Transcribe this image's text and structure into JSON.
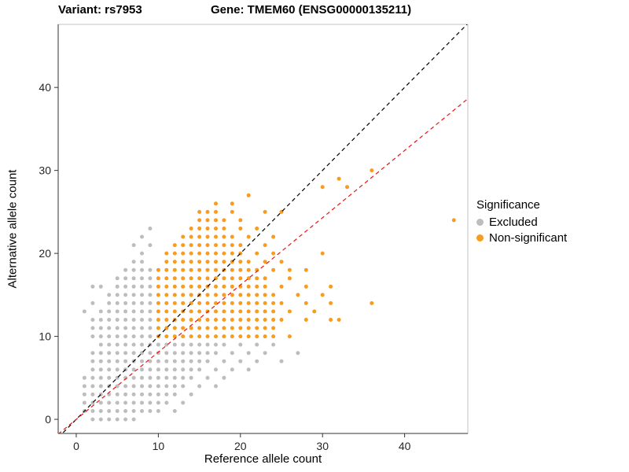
{
  "chart_data": {
    "type": "scatter",
    "title_left": "Variant: rs7953",
    "title_right": "Gene: TMEM60 (ENSG00000135211)",
    "xlabel": "Reference allele count",
    "ylabel": "Alternative allele count",
    "xlim": [
      -2.2,
      47.7
    ],
    "ylim": [
      -1.7,
      47.6
    ],
    "xticks": [
      0,
      10,
      20,
      30,
      40
    ],
    "yticks": [
      0,
      10,
      20,
      30,
      40
    ],
    "grid": false,
    "legend": {
      "title": "Significance",
      "position": "right",
      "entries": [
        {
          "label": "Excluded",
          "color": "#bdbdbd"
        },
        {
          "label": "Non-significant",
          "color": "#f79c1d"
        }
      ]
    },
    "lines": [
      {
        "name": "identity",
        "slope": 1.0,
        "intercept": 0,
        "color": "#000000",
        "dash": "5 4"
      },
      {
        "name": "expected-ratio",
        "slope": 0.81,
        "intercept": 0,
        "color": "#ee1111",
        "dash": "5 4"
      }
    ],
    "series": [
      {
        "name": "Excluded",
        "color": "#bdbdbd",
        "rows": {
          "0": [
            2,
            3,
            4,
            5,
            6,
            7
          ],
          "1": [
            1,
            2,
            3,
            4,
            5,
            6,
            7,
            8,
            9,
            10,
            12
          ],
          "2": [
            1,
            2,
            3,
            4,
            5,
            6,
            7,
            8,
            9,
            10,
            11,
            13
          ],
          "3": [
            1,
            2,
            3,
            4,
            5,
            6,
            7,
            8,
            9,
            10,
            11,
            12,
            14
          ],
          "4": [
            1,
            2,
            3,
            4,
            5,
            6,
            7,
            8,
            9,
            10,
            11,
            12,
            13,
            15,
            17
          ],
          "5": [
            1,
            2,
            3,
            4,
            5,
            6,
            7,
            8,
            9,
            10,
            11,
            12,
            13,
            14,
            16,
            18
          ],
          "6": [
            2,
            3,
            4,
            5,
            6,
            7,
            8,
            9,
            10,
            11,
            12,
            13,
            14,
            15,
            17,
            19,
            21
          ],
          "7": [
            2,
            3,
            4,
            5,
            6,
            7,
            8,
            9,
            10,
            11,
            12,
            13,
            14,
            15,
            16,
            18,
            20,
            22,
            25
          ],
          "8": [
            2,
            3,
            4,
            5,
            6,
            7,
            8,
            9,
            10,
            11,
            12,
            13,
            14,
            15,
            16,
            17,
            19,
            21,
            23,
            27
          ],
          "9": [
            3,
            4,
            5,
            6,
            7,
            8,
            9,
            10,
            11,
            12,
            13,
            14,
            15,
            16,
            17,
            18,
            20,
            22,
            24
          ],
          "10": [
            2,
            3,
            4,
            5,
            6,
            7,
            8,
            9
          ],
          "11": [
            2,
            3,
            4,
            5,
            6,
            7,
            8,
            9
          ],
          "12": [
            2,
            3,
            4,
            5,
            6,
            7,
            8,
            9
          ],
          "13": [
            1,
            3,
            4,
            5,
            6,
            7,
            8,
            9
          ],
          "14": [
            2,
            4,
            5,
            6,
            7,
            8,
            9
          ],
          "15": [
            4,
            5,
            6,
            7,
            8,
            9
          ],
          "16": [
            2,
            3,
            5,
            6,
            7,
            8,
            9
          ],
          "17": [
            5,
            6,
            7,
            8,
            9
          ],
          "18": [
            6,
            7,
            8,
            9
          ],
          "19": [
            7,
            8
          ],
          "20": [
            8
          ],
          "21": [
            7,
            9
          ],
          "22": [
            8
          ],
          "23": [
            9
          ]
        }
      },
      {
        "name": "Non-significant",
        "color": "#f79c1d",
        "rows": {
          "10": [
            10,
            11,
            12,
            13,
            14,
            15,
            16,
            17,
            18,
            19,
            20,
            21,
            22,
            23,
            24,
            26
          ],
          "11": [
            10,
            11,
            12,
            13,
            14,
            15,
            16,
            17,
            18,
            19,
            20,
            21,
            22,
            23,
            24
          ],
          "12": [
            10,
            11,
            12,
            13,
            14,
            15,
            16,
            17,
            18,
            19,
            20,
            21,
            22,
            23,
            24,
            25,
            28,
            31,
            32
          ],
          "13": [
            10,
            11,
            12,
            13,
            14,
            15,
            16,
            17,
            18,
            19,
            20,
            21,
            22,
            23,
            24,
            26,
            29
          ],
          "14": [
            10,
            11,
            12,
            13,
            14,
            15,
            16,
            17,
            18,
            19,
            20,
            21,
            22,
            23,
            24,
            25,
            28,
            31,
            36
          ],
          "15": [
            10,
            11,
            12,
            13,
            14,
            15,
            16,
            17,
            18,
            19,
            20,
            21,
            22,
            23,
            24,
            27,
            30
          ],
          "16": [
            10,
            11,
            12,
            13,
            14,
            15,
            16,
            17,
            18,
            19,
            20,
            21,
            22,
            23,
            25,
            28,
            31
          ],
          "17": [
            10,
            11,
            12,
            13,
            14,
            15,
            16,
            17,
            18,
            19,
            20,
            21,
            22,
            23,
            26
          ],
          "18": [
            10,
            11,
            12,
            13,
            14,
            15,
            16,
            17,
            18,
            19,
            20,
            21,
            22,
            24,
            26,
            28
          ],
          "19": [
            11,
            12,
            13,
            14,
            15,
            16,
            17,
            18,
            19,
            20,
            21,
            23,
            25
          ],
          "20": [
            11,
            12,
            13,
            14,
            15,
            16,
            17,
            18,
            19,
            20,
            22,
            24,
            30
          ],
          "21": [
            12,
            13,
            14,
            15,
            16,
            17,
            18,
            19,
            20,
            23
          ],
          "22": [
            13,
            14,
            15,
            16,
            17,
            18,
            19,
            21,
            24
          ],
          "23": [
            14,
            15,
            16,
            17,
            18,
            20,
            22
          ],
          "24": [
            15,
            16,
            17,
            18,
            20,
            46
          ],
          "25": [
            15,
            16,
            17,
            19,
            23,
            25
          ],
          "26": [
            17,
            19
          ],
          "27": [
            21
          ],
          "28": [
            30,
            33
          ],
          "29": [
            32
          ],
          "30": [
            36
          ]
        }
      }
    ]
  }
}
